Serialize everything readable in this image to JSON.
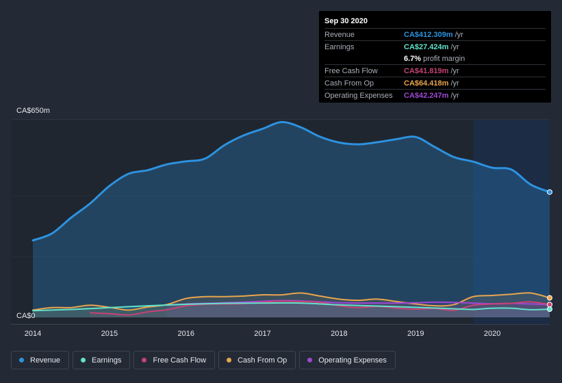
{
  "colors": {
    "revenue": "#2d92e0",
    "earnings": "#62e3cc",
    "free_cash_flow": "#c64276",
    "cash_from_op": "#e9a54e",
    "operating_expenses": "#9e48d6"
  },
  "tooltip": {
    "date": "Sep 30 2020",
    "rows": [
      {
        "key": "Revenue",
        "value": "CA$412.309m",
        "unit": "/yr"
      },
      {
        "key": "Earnings",
        "value": "CA$27.424m",
        "unit": "/yr"
      },
      {
        "key": "",
        "value": "6.7%",
        "unit": "profit margin"
      },
      {
        "key": "Free Cash Flow",
        "value": "CA$41.819m",
        "unit": "/yr"
      },
      {
        "key": "Cash From Op",
        "value": "CA$64.418m",
        "unit": "/yr"
      },
      {
        "key": "Operating Expenses",
        "value": "CA$42.247m",
        "unit": "/yr"
      }
    ]
  },
  "legend": [
    {
      "label": "Revenue",
      "color": "#2d92e0"
    },
    {
      "label": "Earnings",
      "color": "#62e3cc"
    },
    {
      "label": "Free Cash Flow",
      "color": "#c64276"
    },
    {
      "label": "Cash From Op",
      "color": "#e9a54e"
    },
    {
      "label": "Operating Expenses",
      "color": "#9e48d6"
    }
  ],
  "chart_data": {
    "type": "area",
    "ylim": [
      0,
      650
    ],
    "y_tick_labels": [
      "CA$650m",
      "CA$0"
    ],
    "x_tick_labels": [
      "2014",
      "2015",
      "2016",
      "2017",
      "2018",
      "2019",
      "2020"
    ],
    "x_range": [
      2014.0,
      2020.75
    ],
    "highlight_from": 2019.75,
    "grid": true,
    "series": [
      {
        "name": "Revenue",
        "color": "#2d92e0",
        "x": [
          2014.0,
          2014.25,
          2014.5,
          2014.75,
          2015.0,
          2015.25,
          2015.5,
          2015.75,
          2016.0,
          2016.25,
          2016.5,
          2016.75,
          2017.0,
          2017.25,
          2017.5,
          2017.75,
          2018.0,
          2018.25,
          2018.5,
          2018.75,
          2019.0,
          2019.25,
          2019.5,
          2019.75,
          2020.0,
          2020.25,
          2020.5,
          2020.75
        ],
        "values": [
          253,
          276,
          328,
          375,
          432,
          472,
          484,
          503,
          513,
          522,
          566,
          598,
          620,
          642,
          625,
          594,
          575,
          569,
          576,
          586,
          593,
          560,
          527,
          512,
          492,
          486,
          437,
          412
        ]
      },
      {
        "name": "Earnings",
        "color": "#62e3cc",
        "x": [
          2014.0,
          2014.5,
          2015.0,
          2015.5,
          2016.0,
          2016.5,
          2017.0,
          2017.5,
          2018.0,
          2018.5,
          2019.0,
          2019.5,
          2019.75,
          2020.0,
          2020.25,
          2020.5,
          2020.75
        ],
        "values": [
          22,
          26,
          32,
          38,
          43,
          46,
          47,
          47,
          41,
          37,
          33,
          28,
          26,
          30,
          30,
          25,
          27
        ]
      },
      {
        "name": "Free Cash Flow",
        "color": "#c64276",
        "x": [
          2014.75,
          2015.0,
          2015.25,
          2015.5,
          2015.75,
          2016.0,
          2016.25,
          2016.5,
          2016.75,
          2017.0,
          2017.25,
          2017.5,
          2017.75,
          2018.0,
          2018.25,
          2018.5,
          2018.75,
          2019.0,
          2019.25,
          2019.5,
          2019.75,
          2020.0,
          2020.25,
          2020.5,
          2020.75
        ],
        "values": [
          15,
          12,
          8,
          18,
          25,
          38,
          43,
          44,
          45,
          50,
          53,
          52,
          49,
          38,
          32,
          36,
          30,
          27,
          29,
          23,
          40,
          44,
          46,
          51,
          42
        ]
      },
      {
        "name": "Cash From Op",
        "color": "#e9a54e",
        "x": [
          2014.0,
          2014.25,
          2014.5,
          2014.75,
          2015.0,
          2015.25,
          2015.5,
          2015.75,
          2016.0,
          2016.25,
          2016.5,
          2016.75,
          2017.0,
          2017.25,
          2017.5,
          2017.75,
          2018.0,
          2018.25,
          2018.5,
          2018.75,
          2019.0,
          2019.25,
          2019.5,
          2019.75,
          2020.0,
          2020.25,
          2020.5,
          2020.75
        ],
        "values": [
          24,
          32,
          32,
          40,
          33,
          24,
          34,
          42,
          62,
          68,
          68,
          70,
          74,
          74,
          80,
          70,
          60,
          56,
          60,
          52,
          44,
          38,
          42,
          68,
          72,
          76,
          80,
          64
        ]
      },
      {
        "name": "Operating Expenses",
        "color": "#9e48d6",
        "x": [
          2015.75,
          2016.0,
          2016.25,
          2016.5,
          2016.75,
          2017.0,
          2017.25,
          2017.5,
          2017.75,
          2018.0,
          2018.25,
          2018.5,
          2018.75,
          2019.0,
          2019.25,
          2019.5,
          2019.75,
          2020.0,
          2020.25,
          2020.5,
          2020.75
        ],
        "values": [
          40,
          44,
          46,
          48,
          50,
          53,
          55,
          54,
          51,
          48,
          47,
          47,
          47,
          48,
          50,
          49,
          47,
          45,
          46,
          44,
          42
        ]
      }
    ]
  }
}
